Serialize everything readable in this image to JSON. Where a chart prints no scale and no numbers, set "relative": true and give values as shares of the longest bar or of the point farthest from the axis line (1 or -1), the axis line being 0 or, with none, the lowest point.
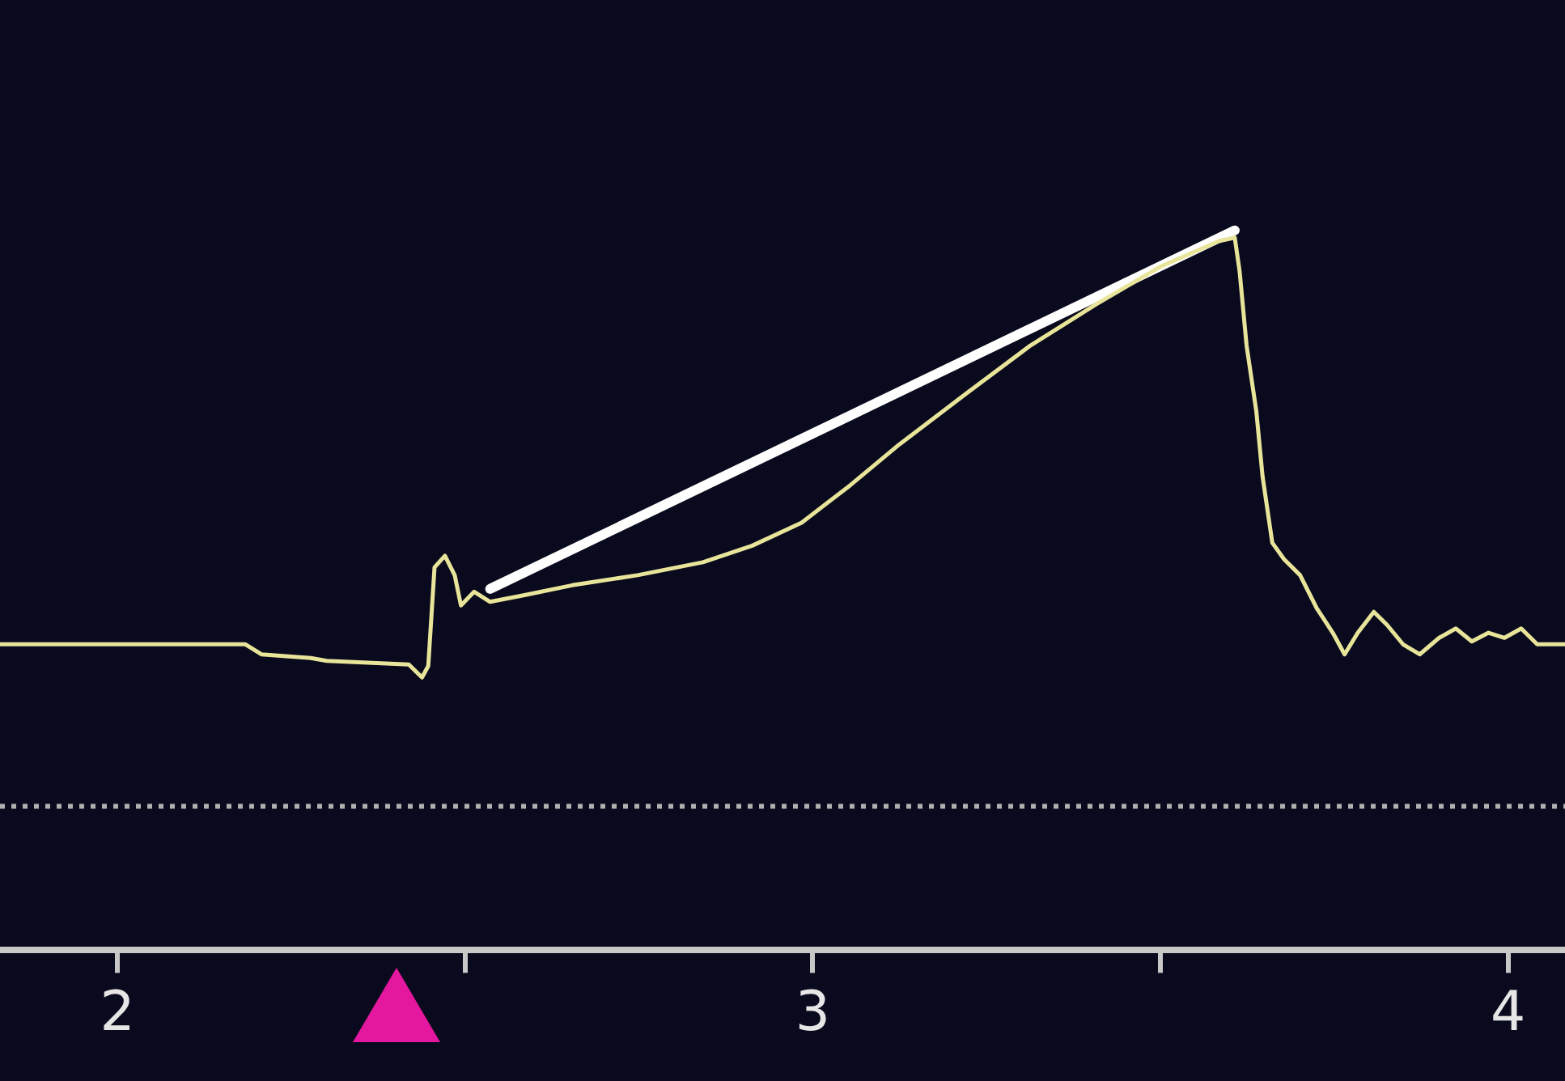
{
  "chart_data": {
    "type": "line",
    "relative": true,
    "marker": "none",
    "line_style": "solid",
    "x": [
      1.831,
      2.184,
      2.207,
      2.278,
      2.301,
      2.419,
      2.438,
      2.447,
      2.456,
      2.471,
      2.485,
      2.494,
      2.513,
      2.536,
      2.584,
      2.654,
      2.748,
      2.842,
      2.913,
      2.984,
      3.054,
      3.125,
      3.219,
      3.313,
      3.407,
      3.501,
      3.584,
      3.607,
      3.614,
      3.624,
      3.638,
      3.647,
      3.661,
      3.678,
      3.701,
      3.725,
      3.748,
      3.765,
      3.784,
      3.807,
      3.826,
      3.849,
      3.873,
      3.901,
      3.925,
      3.948,
      3.972,
      3.995,
      4.019,
      4.042,
      4.082
    ],
    "xlim": [
      1.831,
      4.082
    ],
    "xticks": [
      2,
      {
        "value": 2.5,
        "label": null
      },
      3,
      {
        "value": 3.5,
        "label": null
      },
      4
    ],
    "series": [
      {
        "color": "#e8e59a",
        "values": [
          0.425,
          0.425,
          0.411,
          0.406,
          0.402,
          0.397,
          0.379,
          0.395,
          0.532,
          0.548,
          0.521,
          0.479,
          0.498,
          0.484,
          0.493,
          0.507,
          0.521,
          0.539,
          0.562,
          0.594,
          0.646,
          0.703,
          0.772,
          0.84,
          0.897,
          0.95,
          0.985,
          0.99,
          0.943,
          0.84,
          0.749,
          0.658,
          0.566,
          0.543,
          0.521,
          0.475,
          0.441,
          0.411,
          0.441,
          0.47,
          0.452,
          0.425,
          0.411,
          0.434,
          0.447,
          0.429,
          0.441,
          0.434,
          0.447,
          0.425,
          0.425
        ]
      },
      {
        "type": "line",
        "color": "#ffffff",
        "x": [
          2.536,
          3.607
        ],
        "values": [
          0.502,
          1
        ]
      }
    ],
    "ref_lines": [
      {
        "axis": "y",
        "value": 0.2,
        "color": "#b0b0b0",
        "line_style": "dotted"
      }
    ]
  }
}
